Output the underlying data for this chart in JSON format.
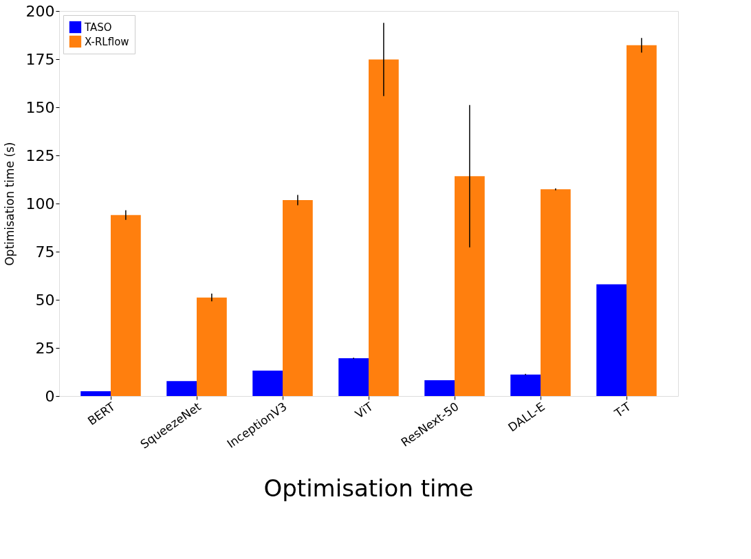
{
  "chart_data": {
    "type": "bar",
    "title": "Optimisation time",
    "ylabel": "Optimisation time (s)",
    "categories": [
      "BERT",
      "SqueezeNet",
      "InceptionV3",
      "ViT",
      "ResNext-50",
      "DALL-E",
      "T-T"
    ],
    "series": [
      {
        "name": "TASO",
        "color": "#0000ff",
        "values": [
          2.5,
          7.8,
          13.2,
          19.6,
          8.2,
          11.2,
          58
        ],
        "errors": [
          null,
          null,
          null,
          0.3,
          null,
          0.3,
          null
        ]
      },
      {
        "name": "X-RLflow",
        "color": "#ff7f0e",
        "values": [
          94,
          51.2,
          101.8,
          174.8,
          114.2,
          107.4,
          182.2
        ],
        "errors": [
          2.5,
          2,
          2.7,
          19,
          37,
          0.5,
          3.8
        ]
      }
    ],
    "ylim": [
      0,
      200
    ],
    "yticks": [
      0,
      25,
      50,
      75,
      100,
      125,
      150,
      175,
      200
    ],
    "grid": false,
    "legend": "top left"
  }
}
